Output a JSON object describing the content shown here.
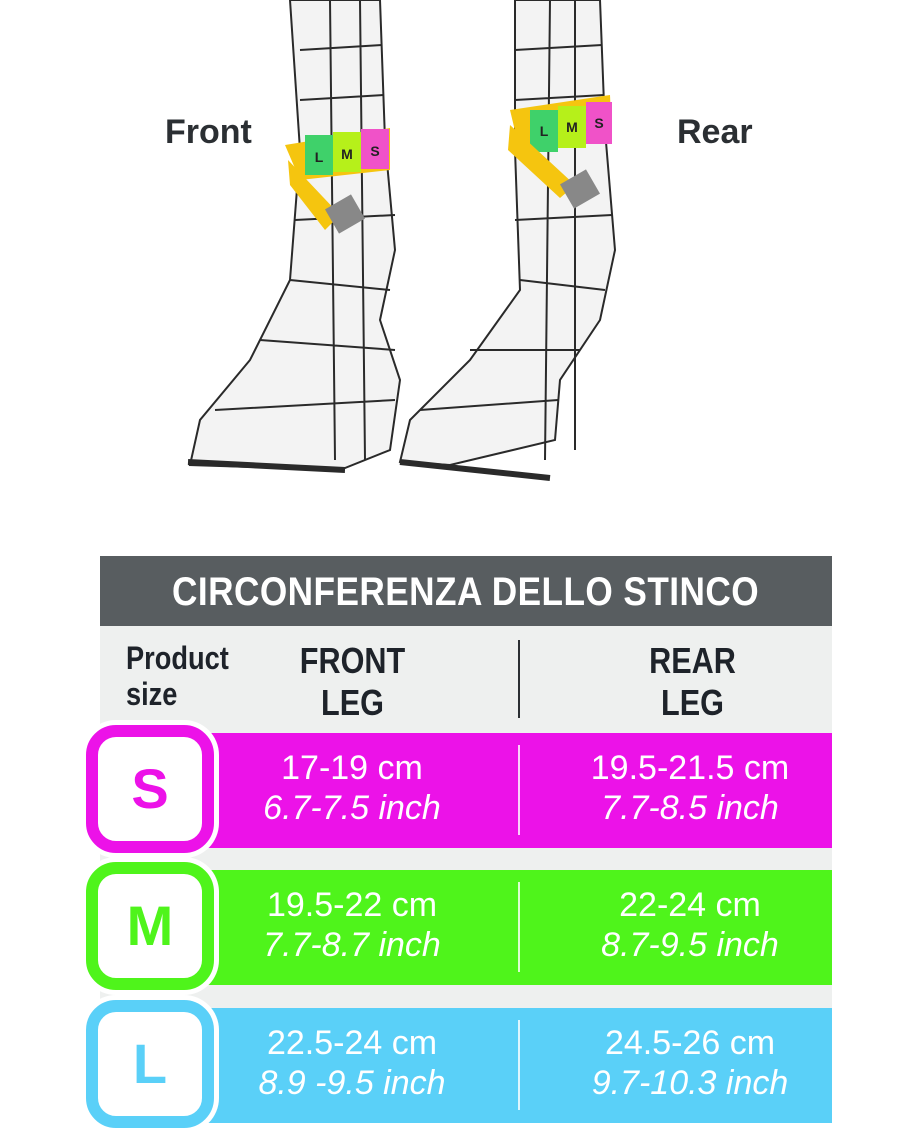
{
  "illustration": {
    "front_label": "Front",
    "rear_label": "Rear",
    "tape_marks": [
      "L",
      "M",
      "S"
    ]
  },
  "table": {
    "title": "CIRCONFERENZA DELLO STINCO",
    "headers": {
      "size_line1": "Product",
      "size_line2": "size",
      "front_line1": "FRONT",
      "front_line2": "LEG",
      "rear_line1": "REAR",
      "rear_line2": "LEG"
    },
    "rows": [
      {
        "size": "S",
        "color": "#ec12e8",
        "front_cm": "17-19 cm",
        "front_inch": "6.7-7.5 inch",
        "rear_cm": "19.5-21.5 cm",
        "rear_inch": "7.7-8.5 inch"
      },
      {
        "size": "M",
        "color": "#4ff41b",
        "front_cm": "19.5-22 cm",
        "front_inch": "7.7-8.7 inch",
        "rear_cm": "22-24 cm",
        "rear_inch": "8.7-9.5 inch"
      },
      {
        "size": "L",
        "color": "#5ad0f8",
        "front_cm": "22.5-24 cm",
        "front_inch": "8.9 -9.5 inch",
        "rear_cm": "24.5-26 cm",
        "rear_inch": "9.7-10.3 inch"
      }
    ]
  }
}
